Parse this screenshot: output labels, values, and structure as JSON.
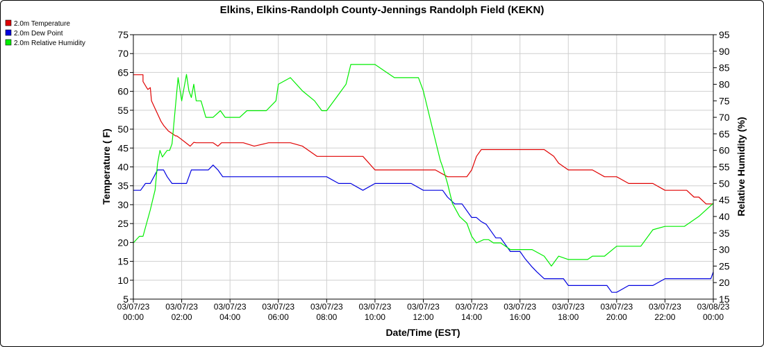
{
  "chart_data": {
    "type": "line",
    "title": "Elkins, Elkins-Randolph County-Jennings Randolph Field (KEKN)",
    "xlabel": "Date/Time (EST)",
    "ylabel": "Temperature ( F)",
    "y2label": "Relative Humidity (%)",
    "ylim": [
      5,
      75
    ],
    "y2lim": [
      15,
      95
    ],
    "yticks": [
      "5",
      "10",
      "15",
      "20",
      "25",
      "30",
      "35",
      "40",
      "45",
      "50",
      "55",
      "60",
      "65",
      "70",
      "75"
    ],
    "y2ticks": [
      "15",
      "20",
      "25",
      "30",
      "35",
      "40",
      "45",
      "50",
      "55",
      "60",
      "65",
      "70",
      "75",
      "80",
      "85",
      "90",
      "95"
    ],
    "x_tick_dates": [
      "03/07/23",
      "03/07/23",
      "03/07/23",
      "03/07/23",
      "03/07/23",
      "03/07/23",
      "03/07/23",
      "03/07/23",
      "03/07/23",
      "03/07/23",
      "03/07/23",
      "03/07/23",
      "03/08/23"
    ],
    "x_tick_times": [
      "00:00",
      "02:00",
      "04:00",
      "06:00",
      "08:00",
      "10:00",
      "12:00",
      "14:00",
      "16:00",
      "18:00",
      "20:00",
      "22:00",
      "00:00"
    ],
    "grid": true,
    "legend_position": "top-left",
    "series": [
      {
        "name": "2.0m Temperature",
        "color": "#e00000",
        "axis": "left",
        "x": [
          0.0,
          0.4,
          0.4,
          0.55,
          0.6,
          0.7,
          0.75,
          1.15,
          1.25,
          1.45,
          1.75,
          1.8,
          1.95,
          2.15,
          2.35,
          2.5,
          2.6,
          3.1,
          3.3,
          3.5,
          3.65,
          3.95,
          4.55,
          5.0,
          5.6,
          6.0,
          6.5,
          7.0,
          7.6,
          8.0,
          8.5,
          9.0,
          9.5,
          10.0,
          10.5,
          11.0,
          11.5,
          12.0,
          12.5,
          13.0,
          13.4,
          13.8,
          14.0,
          14.2,
          14.4,
          14.6,
          15.0,
          15.5,
          16.0,
          16.5,
          17.0,
          17.4,
          17.6,
          18.0,
          18.5,
          19.0,
          19.5,
          20.0,
          20.5,
          21.0,
          21.5,
          22.0,
          22.5,
          22.9,
          23.2,
          23.4,
          23.7,
          24.0
        ],
        "y": [
          64.4,
          64.4,
          62.6,
          61.0,
          60.5,
          61.0,
          57.5,
          52.0,
          51.0,
          49.5,
          48.2,
          48.2,
          47.5,
          46.5,
          45.5,
          46.5,
          46.4,
          46.4,
          46.4,
          45.5,
          46.4,
          46.4,
          46.4,
          45.5,
          46.4,
          46.4,
          46.4,
          45.5,
          42.8,
          42.8,
          42.8,
          42.8,
          42.8,
          39.2,
          39.2,
          39.2,
          39.2,
          39.2,
          39.2,
          37.4,
          37.4,
          37.4,
          39.2,
          42.8,
          44.6,
          44.6,
          44.6,
          44.6,
          44.6,
          44.6,
          44.6,
          42.8,
          41.0,
          39.2,
          39.2,
          39.2,
          37.4,
          37.4,
          35.6,
          35.6,
          35.6,
          33.8,
          33.8,
          33.8,
          32.0,
          32.0,
          30.2,
          30.2
        ]
      },
      {
        "name": "2.0m Dew Point",
        "color": "#0000e0",
        "axis": "left",
        "x": [
          0.0,
          0.3,
          0.5,
          0.7,
          0.85,
          1.0,
          1.15,
          1.25,
          1.4,
          1.6,
          1.75,
          2.0,
          2.2,
          2.4,
          2.6,
          2.9,
          3.1,
          3.3,
          3.5,
          3.7,
          4.0,
          4.5,
          5.0,
          5.5,
          6.0,
          6.5,
          7.0,
          7.5,
          8.0,
          8.5,
          9.0,
          9.5,
          10.0,
          10.5,
          11.0,
          11.5,
          12.0,
          12.5,
          12.8,
          13.0,
          13.3,
          13.6,
          14.0,
          14.2,
          14.4,
          14.6,
          15.0,
          15.2,
          15.4,
          15.6,
          16.0,
          16.2,
          16.5,
          16.7,
          17.0,
          17.3,
          17.6,
          17.8,
          18.0,
          18.5,
          19.0,
          19.3,
          19.6,
          19.8,
          20.0,
          20.5,
          21.0,
          21.5,
          22.0,
          22.5,
          23.0,
          23.5,
          23.9,
          24.0
        ],
        "y": [
          33.8,
          33.8,
          35.6,
          35.6,
          37.4,
          39.2,
          39.2,
          39.2,
          37.4,
          35.6,
          35.6,
          35.6,
          35.6,
          39.2,
          39.2,
          39.2,
          39.2,
          40.5,
          39.2,
          37.4,
          37.4,
          37.4,
          37.4,
          37.4,
          37.4,
          37.4,
          37.4,
          37.4,
          37.4,
          35.6,
          35.6,
          33.8,
          35.6,
          35.6,
          35.6,
          35.6,
          33.8,
          33.8,
          33.8,
          32.0,
          30.2,
          30.2,
          26.6,
          26.6,
          25.5,
          24.8,
          21.2,
          21.2,
          19.4,
          17.6,
          17.6,
          15.8,
          13.5,
          12.2,
          10.4,
          10.4,
          10.4,
          10.4,
          8.6,
          8.6,
          8.6,
          8.6,
          8.6,
          6.8,
          6.8,
          8.6,
          8.6,
          8.6,
          10.4,
          10.4,
          10.4,
          10.4,
          10.4,
          12.2
        ]
      },
      {
        "name": "2.0m Relative Humidity",
        "color": "#00ee00",
        "axis": "right",
        "x": [
          0.0,
          0.25,
          0.4,
          0.7,
          0.8,
          0.9,
          1.0,
          1.1,
          1.2,
          1.3,
          1.4,
          1.5,
          1.6,
          1.75,
          1.85,
          2.0,
          2.2,
          2.3,
          2.4,
          2.5,
          2.6,
          2.8,
          3.0,
          3.2,
          3.3,
          3.6,
          3.8,
          4.0,
          4.4,
          4.7,
          5.0,
          5.5,
          5.9,
          6.0,
          6.5,
          7.0,
          7.5,
          7.8,
          8.0,
          8.4,
          8.8,
          9.0,
          9.4,
          9.6,
          9.8,
          10.0,
          10.4,
          10.8,
          11.0,
          11.4,
          11.8,
          12.0,
          12.4,
          12.7,
          12.8,
          13.0,
          13.2,
          13.5,
          13.8,
          14.0,
          14.2,
          14.5,
          14.7,
          14.9,
          15.0,
          15.2,
          15.6,
          16.0,
          16.5,
          17.0,
          17.3,
          17.6,
          18.0,
          18.4,
          18.8,
          19.0,
          19.5,
          20.0,
          20.5,
          21.0,
          21.5,
          22.0,
          22.5,
          22.8,
          23.0,
          23.4,
          23.7,
          24.0
        ],
        "y": [
          32,
          34,
          34,
          42,
          45,
          48,
          56,
          60,
          58,
          59,
          60,
          60,
          62,
          74,
          82,
          75,
          83,
          78,
          76,
          80,
          75,
          75,
          70,
          70,
          70,
          72,
          70,
          70,
          70,
          72,
          72,
          72,
          75,
          80,
          82,
          78,
          75,
          72,
          72,
          76,
          80,
          86,
          86,
          86,
          86,
          86,
          84,
          82,
          82,
          82,
          82,
          78,
          66,
          57,
          55,
          50,
          44,
          40,
          38,
          34,
          32,
          33,
          33,
          32,
          32,
          32,
          30,
          30,
          30,
          28,
          25,
          28,
          27,
          27,
          27,
          28,
          28,
          31,
          31,
          31,
          36,
          37,
          37,
          37,
          38,
          40,
          42,
          44
        ]
      }
    ]
  }
}
